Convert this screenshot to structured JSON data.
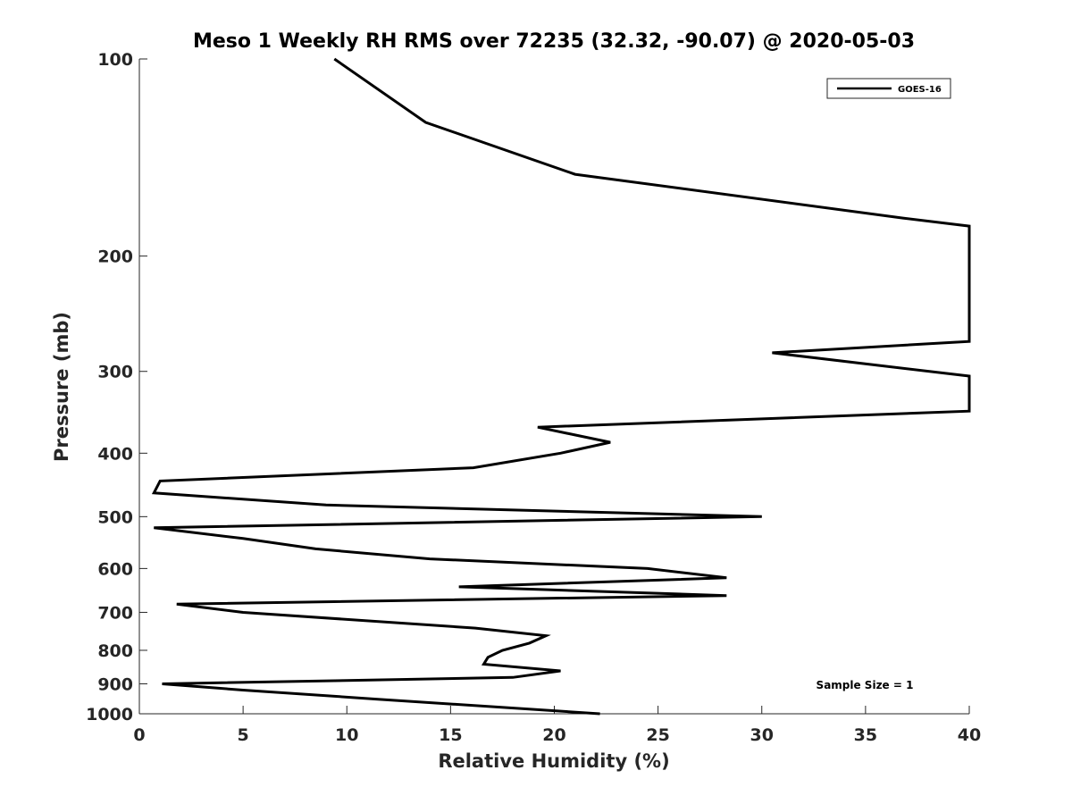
{
  "chart_data": {
    "type": "line",
    "title": "Meso 1 Weekly RH RMS over 72235 (32.32, -90.07) @ 2020-05-03",
    "xlabel": "Relative Humidity (%)",
    "ylabel": "Pressure (mb)",
    "xlim": [
      0,
      40
    ],
    "ylim": [
      100,
      1000
    ],
    "y_scale": "log",
    "y_reversed": true,
    "xticks": [
      0,
      5,
      10,
      15,
      20,
      25,
      30,
      35,
      40
    ],
    "yticks": [
      100,
      200,
      300,
      400,
      500,
      600,
      700,
      800,
      900,
      1000
    ],
    "grid": false,
    "legend_position": "top-right",
    "annotation": "Sample Size = 1",
    "series": [
      {
        "name": "GOES-16",
        "color": "#000000",
        "points": [
          {
            "x": 9.4,
            "p": 100
          },
          {
            "x": 13.8,
            "p": 125
          },
          {
            "x": 21.0,
            "p": 150
          },
          {
            "x": 36.8,
            "p": 175
          },
          {
            "x": 40.0,
            "p": 180
          },
          {
            "x": 40.0,
            "p": 270
          },
          {
            "x": 30.5,
            "p": 281
          },
          {
            "x": 40.0,
            "p": 305
          },
          {
            "x": 40.0,
            "p": 345
          },
          {
            "x": 19.2,
            "p": 365
          },
          {
            "x": 22.7,
            "p": 385
          },
          {
            "x": 20.3,
            "p": 400
          },
          {
            "x": 16.1,
            "p": 421
          },
          {
            "x": 1.0,
            "p": 441
          },
          {
            "x": 0.7,
            "p": 460
          },
          {
            "x": 9.0,
            "p": 480
          },
          {
            "x": 30.0,
            "p": 500
          },
          {
            "x": 0.7,
            "p": 520
          },
          {
            "x": 5.0,
            "p": 540
          },
          {
            "x": 8.5,
            "p": 560
          },
          {
            "x": 14.0,
            "p": 580
          },
          {
            "x": 24.5,
            "p": 600
          },
          {
            "x": 28.3,
            "p": 620
          },
          {
            "x": 15.4,
            "p": 640
          },
          {
            "x": 28.3,
            "p": 660
          },
          {
            "x": 1.8,
            "p": 680
          },
          {
            "x": 5.0,
            "p": 700
          },
          {
            "x": 16.2,
            "p": 740
          },
          {
            "x": 19.6,
            "p": 760
          },
          {
            "x": 18.8,
            "p": 780
          },
          {
            "x": 17.5,
            "p": 800
          },
          {
            "x": 16.8,
            "p": 820
          },
          {
            "x": 16.6,
            "p": 840
          },
          {
            "x": 20.3,
            "p": 860
          },
          {
            "x": 18.0,
            "p": 880
          },
          {
            "x": 1.1,
            "p": 900
          },
          {
            "x": 5.0,
            "p": 920
          },
          {
            "x": 11.5,
            "p": 950
          },
          {
            "x": 22.2,
            "p": 1000
          }
        ]
      }
    ]
  }
}
